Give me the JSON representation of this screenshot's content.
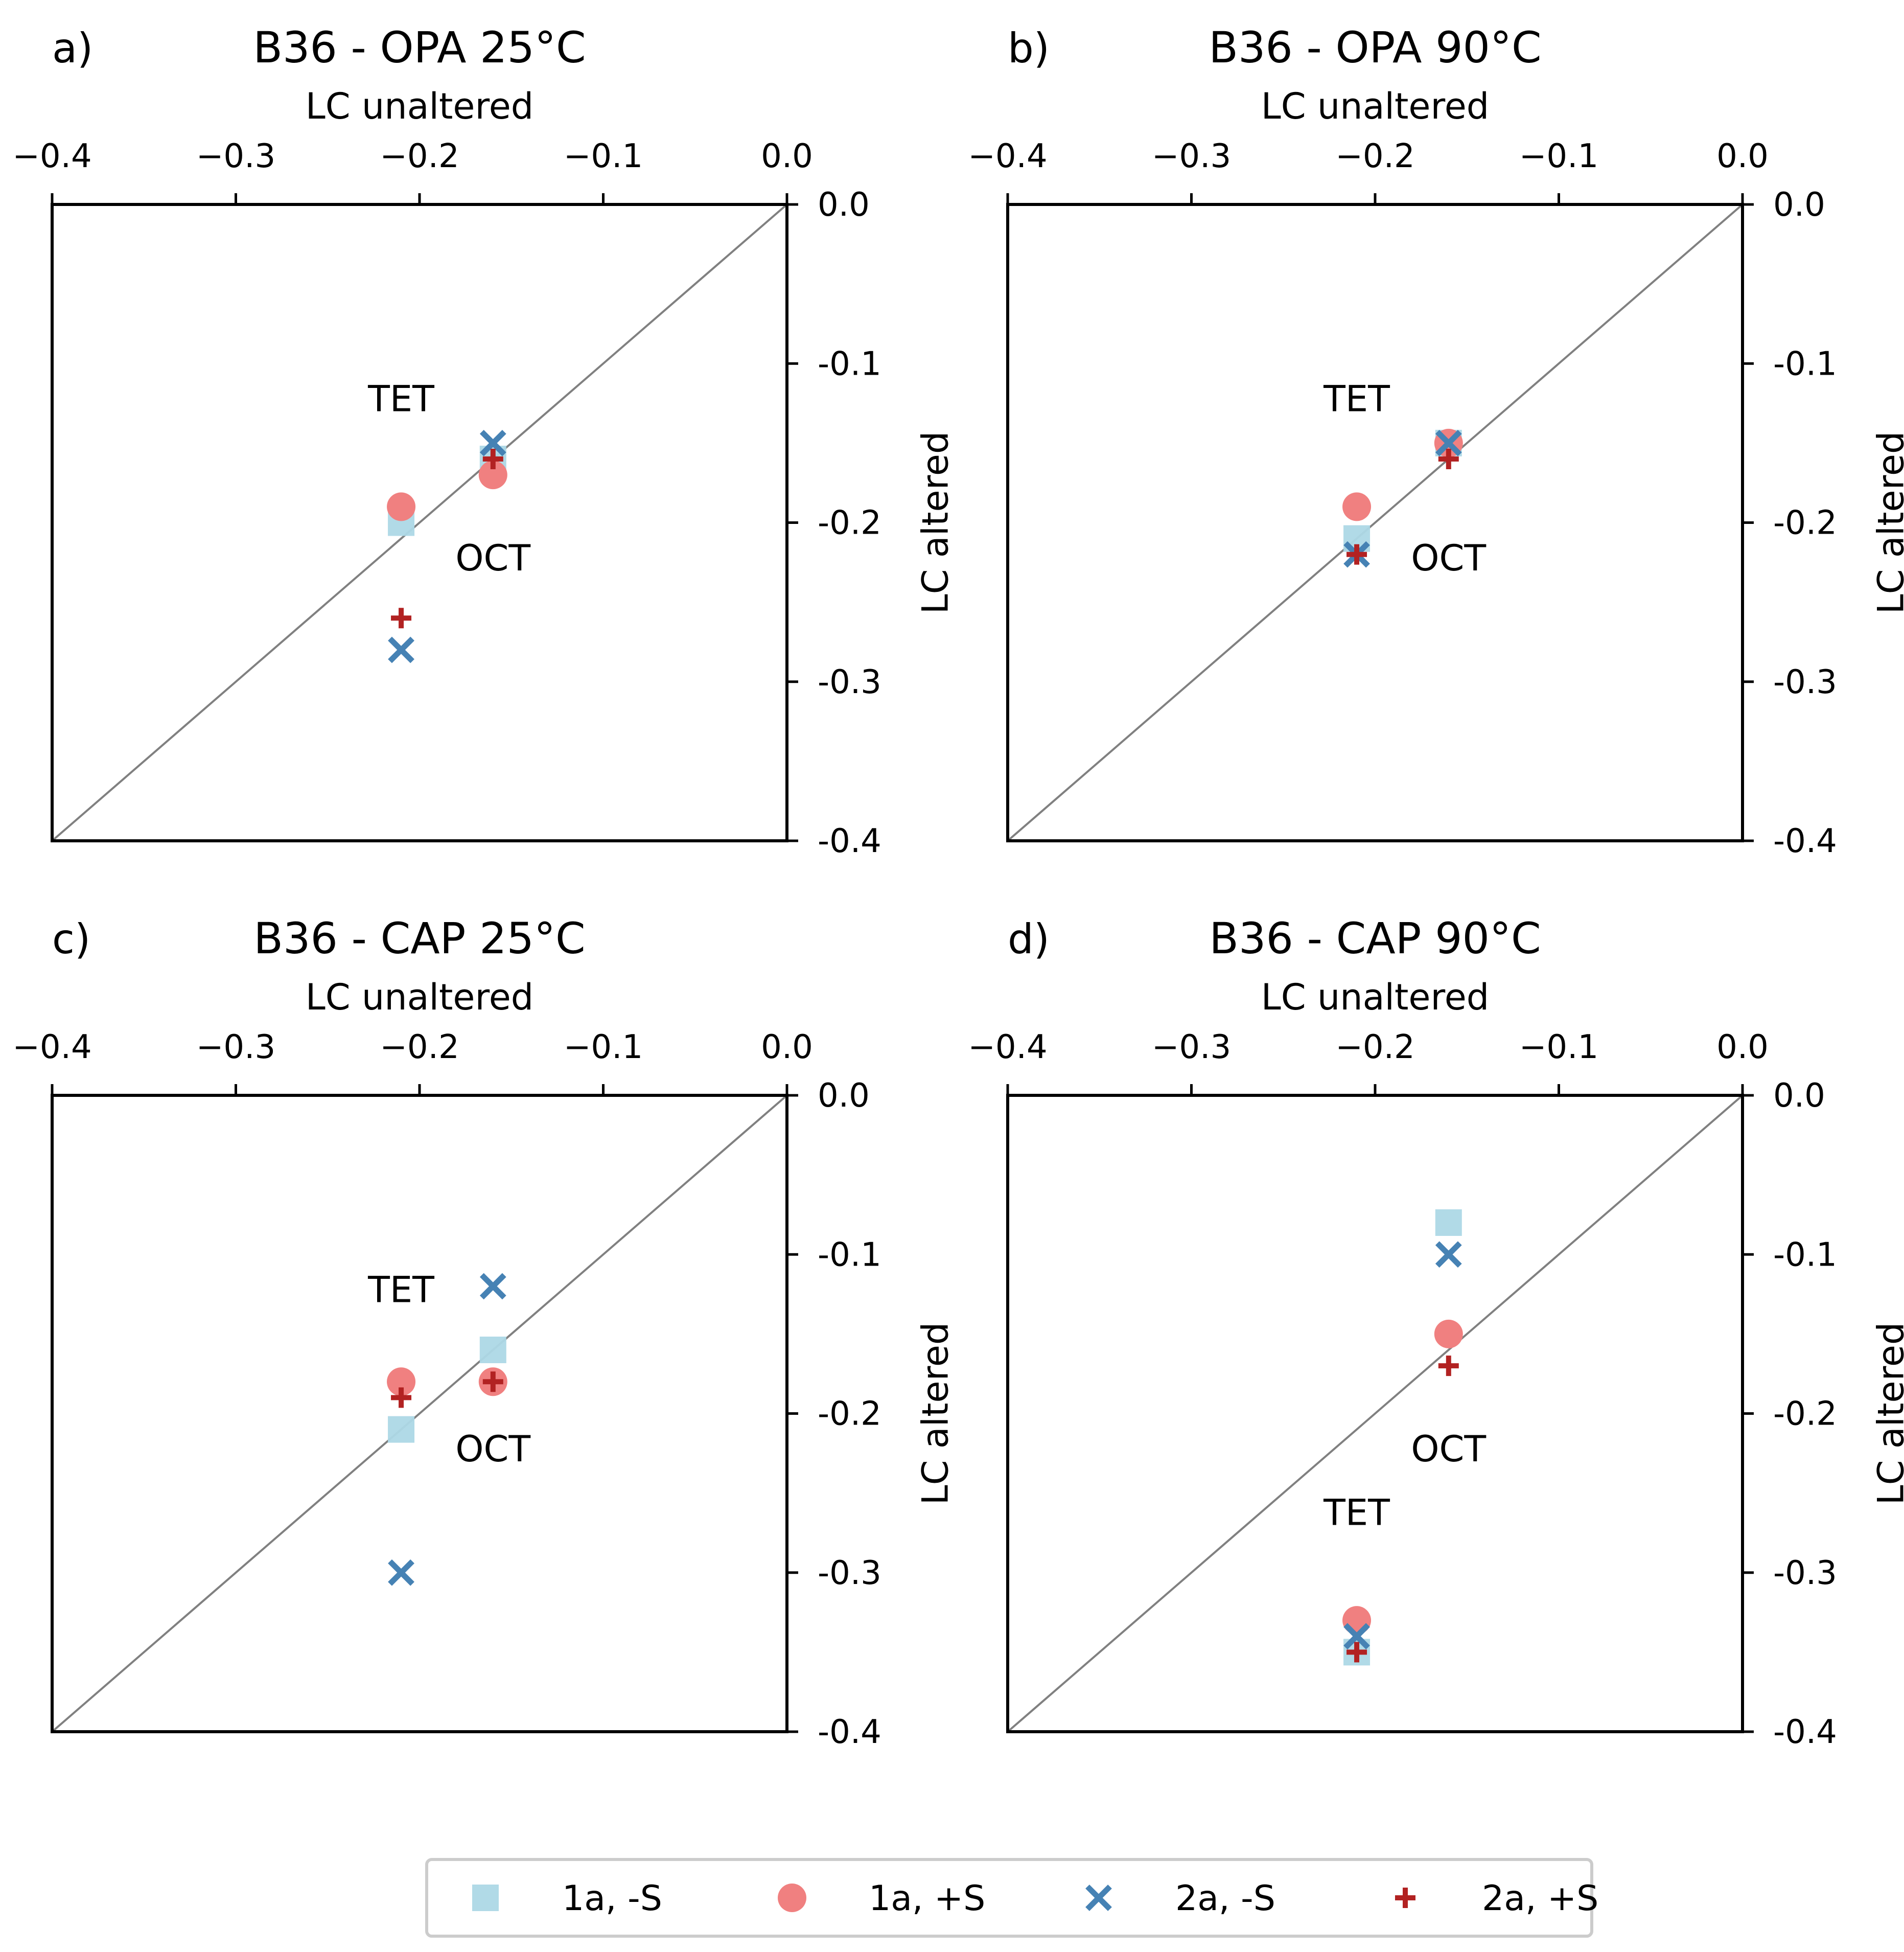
{
  "chart_data": [
    {
      "type": "scatter",
      "letter": "a)",
      "title": "B36 - OPA 25°C",
      "xlabel": "LC unaltered",
      "ylabel": "LC altered",
      "xlim": [
        -0.4,
        0.0
      ],
      "ylim": [
        -0.4,
        0.0
      ],
      "xticks": [
        "−0.4",
        "−0.3",
        "−0.2",
        "−0.1",
        "0.0"
      ],
      "yticks": [
        "0.0",
        "-0.1",
        "-0.2",
        "-0.3",
        "-0.4"
      ],
      "annotations": [
        {
          "text": "TET",
          "x": -0.21,
          "y": -0.13
        },
        {
          "text": "OCT",
          "x": -0.16,
          "y": -0.23
        }
      ],
      "series": [
        {
          "name": "1a, -S",
          "points": [
            [
              -0.21,
              -0.2
            ],
            [
              -0.16,
              -0.16
            ]
          ]
        },
        {
          "name": "1a, +S",
          "points": [
            [
              -0.21,
              -0.19
            ],
            [
              -0.16,
              -0.17
            ]
          ]
        },
        {
          "name": "2a, -S",
          "points": [
            [
              -0.21,
              -0.28
            ],
            [
              -0.16,
              -0.15
            ]
          ]
        },
        {
          "name": "2a, +S",
          "points": [
            [
              -0.21,
              -0.26
            ],
            [
              -0.16,
              -0.16
            ]
          ]
        }
      ]
    },
    {
      "type": "scatter",
      "letter": "b)",
      "title": "B36 - OPA 90°C",
      "xlabel": "LC unaltered",
      "ylabel": "LC altered",
      "xlim": [
        -0.4,
        0.0
      ],
      "ylim": [
        -0.4,
        0.0
      ],
      "xticks": [
        "−0.4",
        "−0.3",
        "−0.2",
        "−0.1",
        "0.0"
      ],
      "yticks": [
        "0.0",
        "-0.1",
        "-0.2",
        "-0.3",
        "-0.4"
      ],
      "annotations": [
        {
          "text": "TET",
          "x": -0.21,
          "y": -0.13
        },
        {
          "text": "OCT",
          "x": -0.16,
          "y": -0.23
        }
      ],
      "series": [
        {
          "name": "1a, -S",
          "points": [
            [
              -0.21,
              -0.21
            ],
            [
              -0.16,
              -0.15
            ]
          ]
        },
        {
          "name": "1a, +S",
          "points": [
            [
              -0.21,
              -0.19
            ],
            [
              -0.16,
              -0.15
            ]
          ]
        },
        {
          "name": "2a, -S",
          "points": [
            [
              -0.21,
              -0.22
            ],
            [
              -0.16,
              -0.15
            ]
          ]
        },
        {
          "name": "2a, +S",
          "points": [
            [
              -0.21,
              -0.22
            ],
            [
              -0.16,
              -0.16
            ]
          ]
        }
      ]
    },
    {
      "type": "scatter",
      "letter": "c)",
      "title": "B36 - CAP 25°C",
      "xlabel": "LC unaltered",
      "ylabel": "LC altered",
      "xlim": [
        -0.4,
        0.0
      ],
      "ylim": [
        -0.4,
        0.0
      ],
      "xticks": [
        "−0.4",
        "−0.3",
        "−0.2",
        "−0.1",
        "0.0"
      ],
      "yticks": [
        "0.0",
        "-0.1",
        "-0.2",
        "-0.3",
        "-0.4"
      ],
      "annotations": [
        {
          "text": "TET",
          "x": -0.21,
          "y": -0.13
        },
        {
          "text": "OCT",
          "x": -0.16,
          "y": -0.23
        }
      ],
      "series": [
        {
          "name": "1a, -S",
          "points": [
            [
              -0.21,
              -0.21
            ],
            [
              -0.16,
              -0.16
            ]
          ]
        },
        {
          "name": "1a, +S",
          "points": [
            [
              -0.21,
              -0.18
            ],
            [
              -0.16,
              -0.18
            ]
          ]
        },
        {
          "name": "2a, -S",
          "points": [
            [
              -0.21,
              -0.3
            ],
            [
              -0.16,
              -0.12
            ]
          ]
        },
        {
          "name": "2a, +S",
          "points": [
            [
              -0.21,
              -0.19
            ],
            [
              -0.16,
              -0.18
            ]
          ]
        }
      ]
    },
    {
      "type": "scatter",
      "letter": "d)",
      "title": "B36 - CAP 90°C",
      "xlabel": "LC unaltered",
      "ylabel": "LC altered",
      "xlim": [
        -0.4,
        0.0
      ],
      "ylim": [
        -0.4,
        0.0
      ],
      "xticks": [
        "−0.4",
        "−0.3",
        "−0.2",
        "−0.1",
        "0.0"
      ],
      "yticks": [
        "0.0",
        "-0.1",
        "-0.2",
        "-0.3",
        "-0.4"
      ],
      "annotations": [
        {
          "text": "OCT",
          "x": -0.16,
          "y": -0.23
        },
        {
          "text": "TET",
          "x": -0.21,
          "y": -0.27
        }
      ],
      "series": [
        {
          "name": "1a, -S",
          "points": [
            [
              -0.21,
              -0.35
            ],
            [
              -0.16,
              -0.08
            ]
          ]
        },
        {
          "name": "1a, +S",
          "points": [
            [
              -0.21,
              -0.33
            ],
            [
              -0.16,
              -0.15
            ]
          ]
        },
        {
          "name": "2a, -S",
          "points": [
            [
              -0.21,
              -0.34
            ],
            [
              -0.16,
              -0.1
            ]
          ]
        },
        {
          "name": "2a, +S",
          "points": [
            [
              -0.21,
              -0.35
            ],
            [
              -0.16,
              -0.17
            ]
          ]
        }
      ]
    }
  ],
  "legend": {
    "placement": "bottom-center",
    "entries": [
      {
        "label": "1a, -S",
        "marker": "square",
        "color": "#add8e6"
      },
      {
        "label": "1a, +S",
        "marker": "circle",
        "color": "#f08080"
      },
      {
        "label": "2a, -S",
        "marker": "x",
        "color": "#4682b4"
      },
      {
        "label": "2a, +S",
        "marker": "plus",
        "color": "#b22222"
      }
    ]
  },
  "style": {
    "diagonal_color": "#808080",
    "axis_color": "#000000"
  }
}
